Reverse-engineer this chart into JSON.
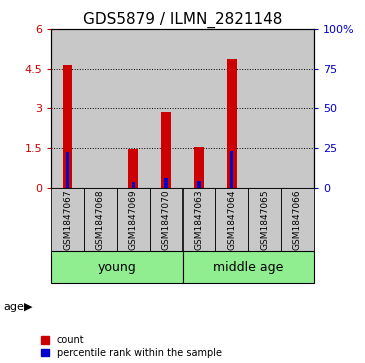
{
  "title": "GDS5879 / ILMN_2821148",
  "samples": [
    "GSM1847067",
    "GSM1847068",
    "GSM1847069",
    "GSM1847070",
    "GSM1847063",
    "GSM1847064",
    "GSM1847065",
    "GSM1847066"
  ],
  "red_values": [
    4.65,
    0.0,
    1.45,
    2.85,
    1.55,
    4.85,
    0.0,
    0.0
  ],
  "blue_pct": [
    22.5,
    0.0,
    3.5,
    6.0,
    4.2,
    23.5,
    0.0,
    0.0
  ],
  "ylim_left": [
    0,
    6
  ],
  "ylim_right": [
    0,
    100
  ],
  "yticks_left": [
    0,
    1.5,
    3,
    4.5,
    6
  ],
  "yticks_right": [
    0,
    25,
    50,
    75,
    100
  ],
  "ytick_labels_right": [
    "0",
    "25",
    "50",
    "75",
    "100%"
  ],
  "age_label": "age",
  "red_color": "#CC0000",
  "blue_color": "#0000CC",
  "bg_color": "#C8C8C8",
  "group_bg_color": "#90EE90",
  "legend_red": "count",
  "legend_blue": "percentile rank within the sample",
  "tick_color_left": "#CC0000",
  "tick_color_right": "#0000CC",
  "title_fontsize": 11,
  "label_fontsize": 8,
  "group_label_fontsize": 9,
  "sample_label_fontsize": 6.5,
  "groups": [
    {
      "label": "young",
      "cols": 4
    },
    {
      "label": "middle age",
      "cols": 4
    }
  ]
}
